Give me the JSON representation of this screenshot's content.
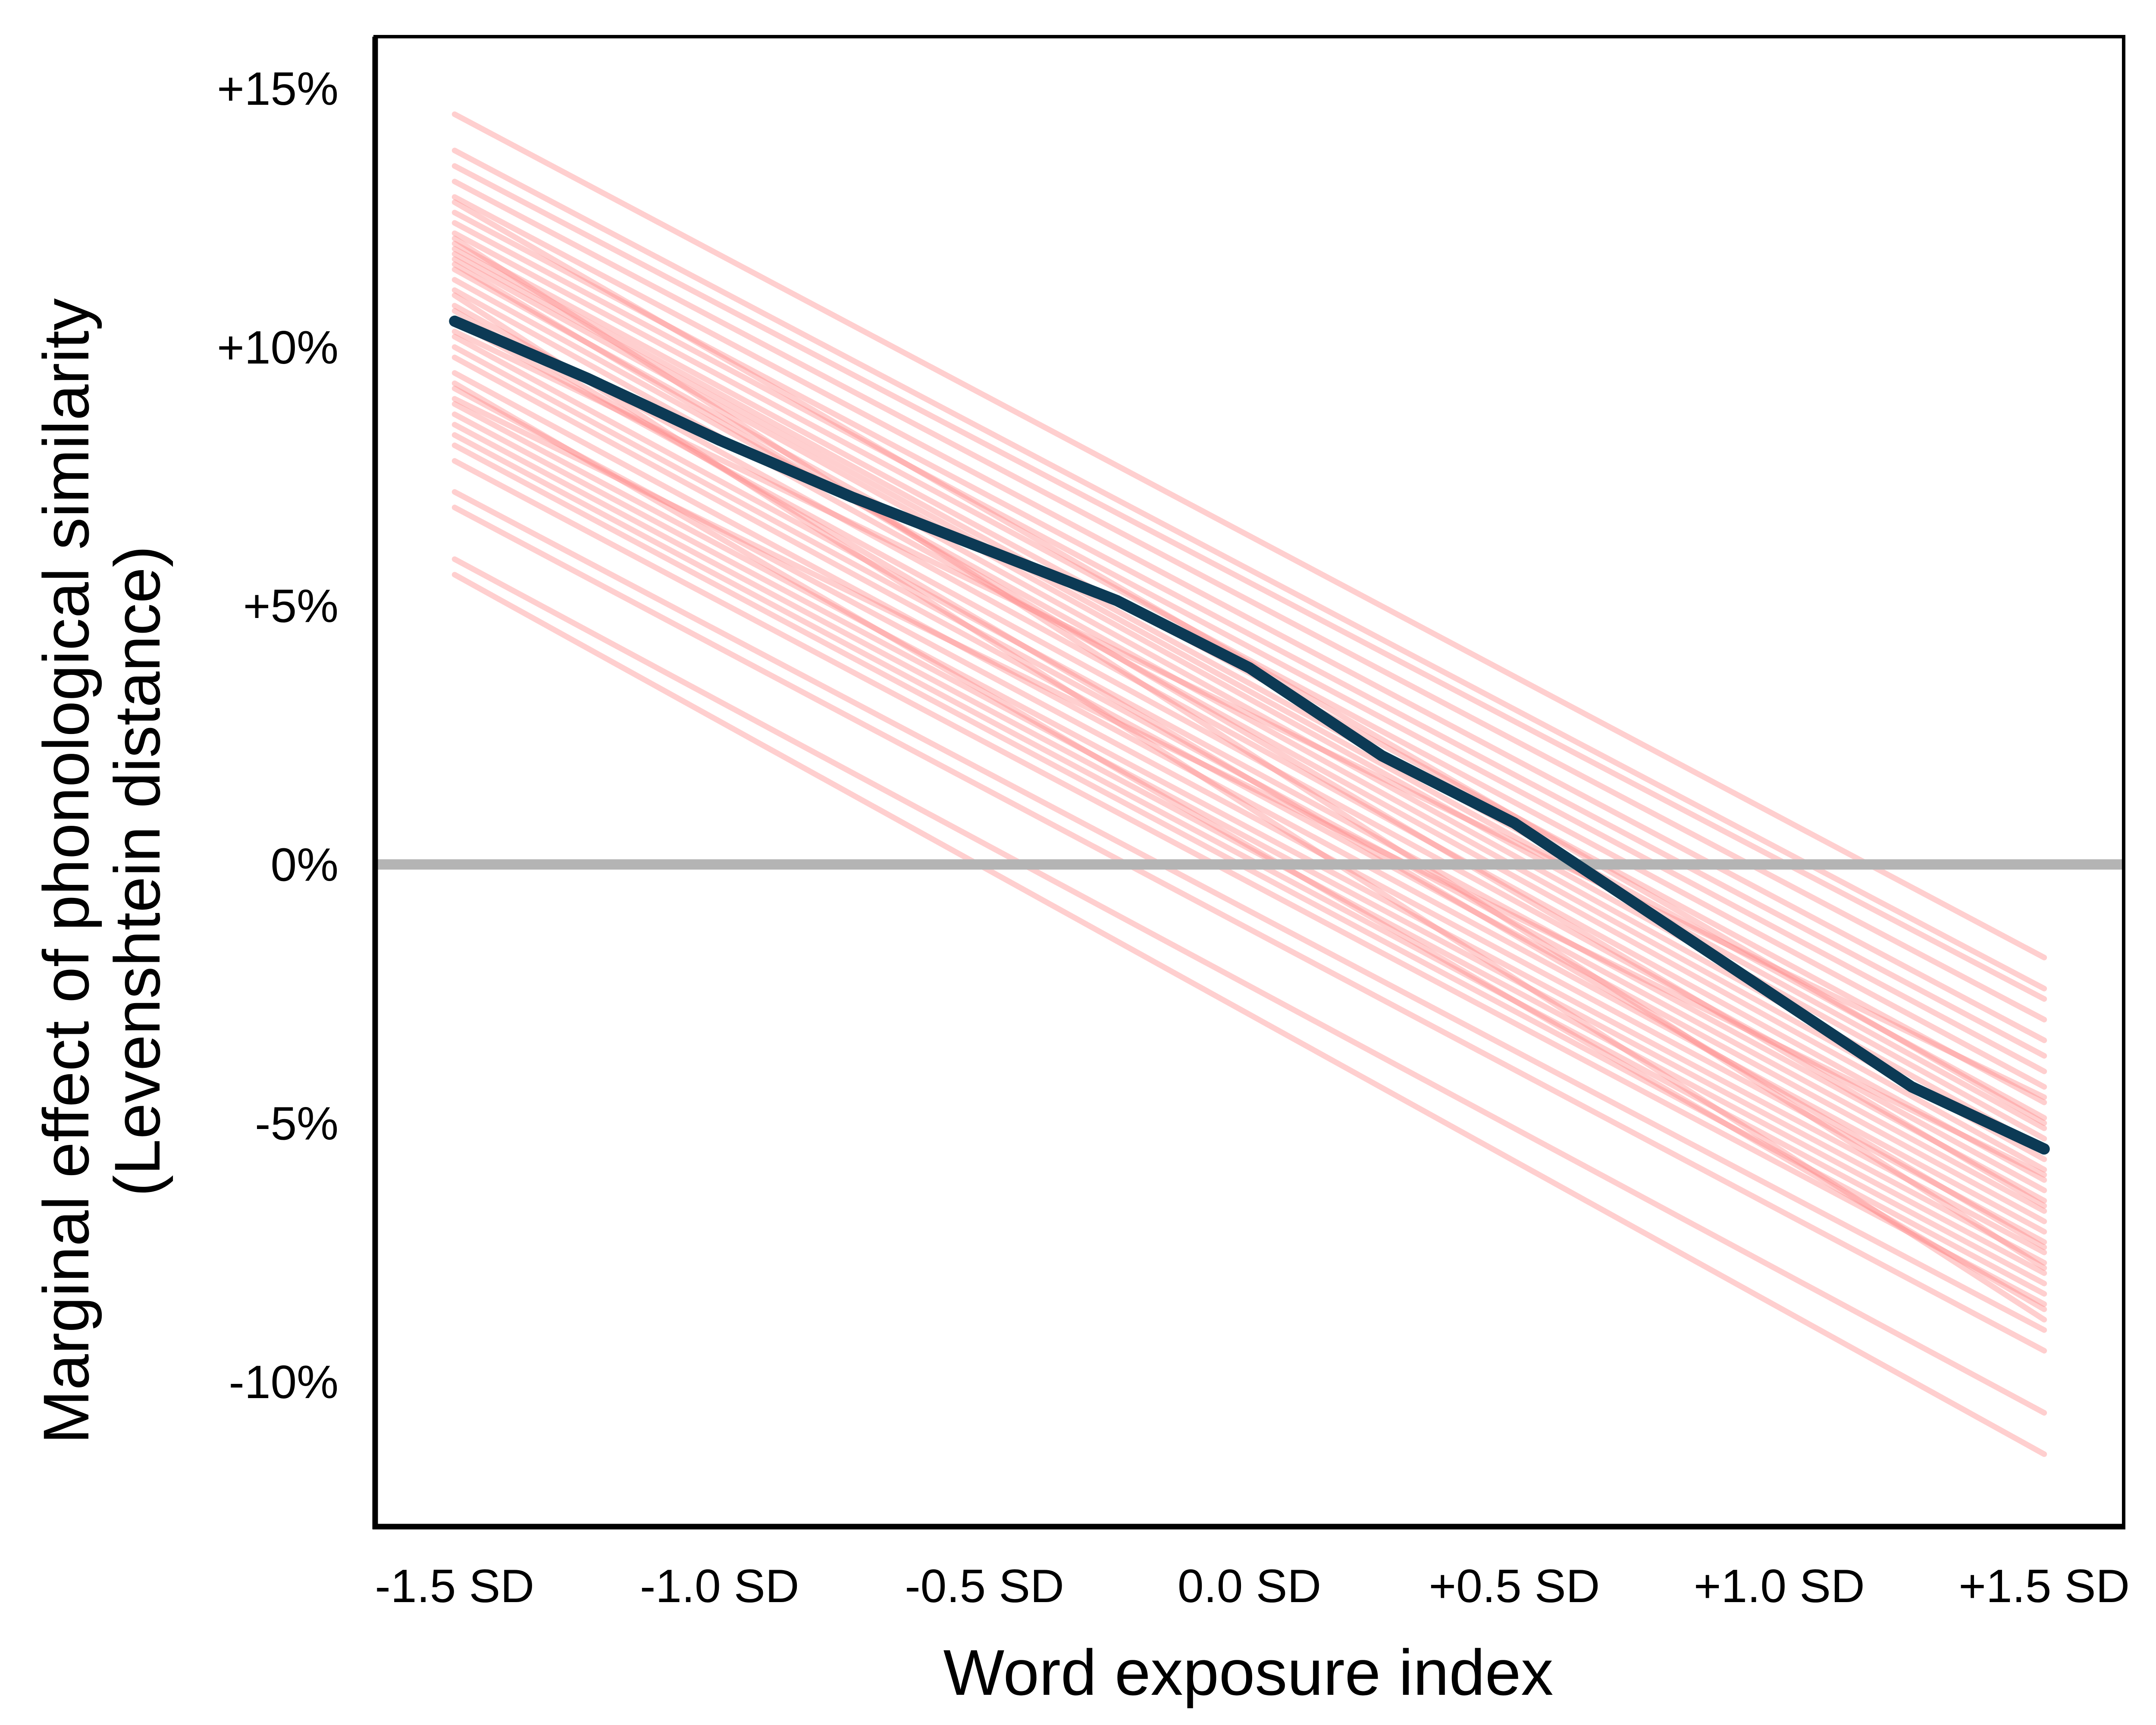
{
  "chart_data": {
    "type": "line",
    "xlabel": "Word exposure index",
    "ylabel_line1": "Marginal effect of phonological similarity",
    "ylabel_line2": "(Levenshtein distance)",
    "x_ticks": [
      {
        "value": -1.5,
        "label": "-1.5 SD"
      },
      {
        "value": -1.0,
        "label": "-1.0 SD"
      },
      {
        "value": -0.5,
        "label": "-0.5 SD"
      },
      {
        "value": 0.0,
        "label": "0.0 SD"
      },
      {
        "value": 0.5,
        "label": "+0.5 SD"
      },
      {
        "value": 1.0,
        "label": "+1.0 SD"
      },
      {
        "value": 1.5,
        "label": "+1.5 SD"
      }
    ],
    "y_ticks": [
      {
        "value": 15,
        "label": "+15%"
      },
      {
        "value": 10,
        "label": "+10%"
      },
      {
        "value": 5,
        "label": "+5%"
      },
      {
        "value": 0,
        "label": "0%"
      },
      {
        "value": -5,
        "label": "-5%"
      },
      {
        "value": -10,
        "label": "-10%"
      }
    ],
    "xlim": [
      -1.65,
      1.65
    ],
    "ylim": [
      -12.8,
      16.0
    ],
    "grid": false,
    "reference_line": {
      "y": 0,
      "color": "#b4b4b4"
    },
    "colors": {
      "fit": "#0c3a55",
      "draws": "#ff8c8c",
      "draws_opacity": 0.42
    },
    "series": [
      {
        "x": [
          -1.5,
          -1.25,
          -1.0,
          -0.75,
          -0.5,
          -0.25,
          0.0,
          0.25,
          0.5,
          0.75,
          1.0,
          1.25,
          1.5
        ],
        "values": [
          10.5,
          9.4,
          8.2,
          7.1,
          6.1,
          5.1,
          3.8,
          2.1,
          0.8,
          -0.9,
          -2.6,
          -4.3,
          -5.5
        ]
      }
    ],
    "draws": [
      {
        "x": [
          -1.5,
          1.5
        ],
        "values": [
          14.5,
          -1.8
        ]
      },
      {
        "x": [
          -1.5,
          1.5
        ],
        "values": [
          13.8,
          -2.4
        ]
      },
      {
        "x": [
          -1.5,
          1.5
        ],
        "values": [
          13.5,
          -2.6
        ]
      },
      {
        "x": [
          -1.5,
          1.5
        ],
        "values": [
          13.2,
          -3.0
        ]
      },
      {
        "x": [
          -1.5,
          1.5
        ],
        "values": [
          12.9,
          -3.4
        ]
      },
      {
        "x": [
          -1.5,
          1.5
        ],
        "values": [
          12.6,
          -3.7
        ]
      },
      {
        "x": [
          -1.5,
          1.5
        ],
        "values": [
          12.4,
          -4.0
        ]
      },
      {
        "x": [
          -1.5,
          1.5
        ],
        "values": [
          12.2,
          -4.3
        ]
      },
      {
        "x": [
          -1.5,
          1.5
        ],
        "values": [
          12.0,
          -4.6
        ]
      },
      {
        "x": [
          -1.5,
          1.5
        ],
        "values": [
          11.9,
          -4.9
        ]
      },
      {
        "x": [
          -1.5,
          1.5
        ],
        "values": [
          11.8,
          -5.1
        ]
      },
      {
        "x": [
          -1.5,
          1.5
        ],
        "values": [
          11.7,
          -5.3
        ]
      },
      {
        "x": [
          -1.5,
          1.5
        ],
        "values": [
          11.5,
          -5.5
        ]
      },
      {
        "x": [
          -1.5,
          1.5
        ],
        "values": [
          11.3,
          -5.7
        ]
      },
      {
        "x": [
          -1.5,
          1.5
        ],
        "values": [
          11.1,
          -5.9
        ]
      },
      {
        "x": [
          -1.5,
          1.5
        ],
        "values": [
          10.8,
          -6.1
        ]
      },
      {
        "x": [
          -1.5,
          1.5
        ],
        "values": [
          10.5,
          -6.3
        ]
      },
      {
        "x": [
          -1.5,
          1.5
        ],
        "values": [
          10.2,
          -6.5
        ]
      },
      {
        "x": [
          -1.5,
          1.5
        ],
        "values": [
          10.0,
          -6.7
        ]
      },
      {
        "x": [
          -1.5,
          1.5
        ],
        "values": [
          9.8,
          -6.9
        ]
      },
      {
        "x": [
          -1.5,
          1.5
        ],
        "values": [
          9.5,
          -7.1
        ]
      },
      {
        "x": [
          -1.5,
          1.5
        ],
        "values": [
          9.2,
          -7.3
        ]
      },
      {
        "x": [
          -1.5,
          1.5
        ],
        "values": [
          8.9,
          -7.5
        ]
      },
      {
        "x": [
          -1.5,
          1.5
        ],
        "values": [
          8.7,
          -7.7
        ]
      },
      {
        "x": [
          -1.5,
          1.5
        ],
        "values": [
          8.5,
          -7.9
        ]
      },
      {
        "x": [
          -1.5,
          1.5
        ],
        "values": [
          8.3,
          -8.1
        ]
      },
      {
        "x": [
          -1.5,
          1.5
        ],
        "values": [
          8.1,
          -8.3
        ]
      },
      {
        "x": [
          -1.5,
          1.5
        ],
        "values": [
          7.8,
          -8.5
        ]
      },
      {
        "x": [
          -1.5,
          1.5
        ],
        "values": [
          7.2,
          -9.0
        ]
      },
      {
        "x": [
          -1.5,
          1.5
        ],
        "values": [
          6.9,
          -9.4
        ]
      },
      {
        "x": [
          -1.5,
          1.5
        ],
        "values": [
          5.9,
          -10.6
        ]
      },
      {
        "x": [
          -1.5,
          1.5
        ],
        "values": [
          5.6,
          -11.4
        ]
      },
      {
        "x": [
          -1.5,
          1.5
        ],
        "values": [
          11.6,
          -6.6
        ]
      },
      {
        "x": [
          -1.5,
          1.5
        ],
        "values": [
          10.7,
          -7.4
        ]
      },
      {
        "x": [
          -1.5,
          1.5
        ],
        "values": [
          9.3,
          -8.6
        ]
      },
      {
        "x": [
          -1.5,
          1.5
        ],
        "values": [
          12.1,
          -7.8
        ]
      },
      {
        "x": [
          -1.5,
          1.5
        ],
        "values": [
          11.0,
          -8.8
        ]
      },
      {
        "x": [
          -1.5,
          1.5
        ],
        "values": [
          9.0,
          -6.0
        ]
      },
      {
        "x": [
          -1.5,
          1.5
        ],
        "values": [
          12.8,
          -5.0
        ]
      },
      {
        "x": [
          -1.5,
          1.5
        ],
        "values": [
          10.3,
          -4.5
        ]
      }
    ]
  }
}
